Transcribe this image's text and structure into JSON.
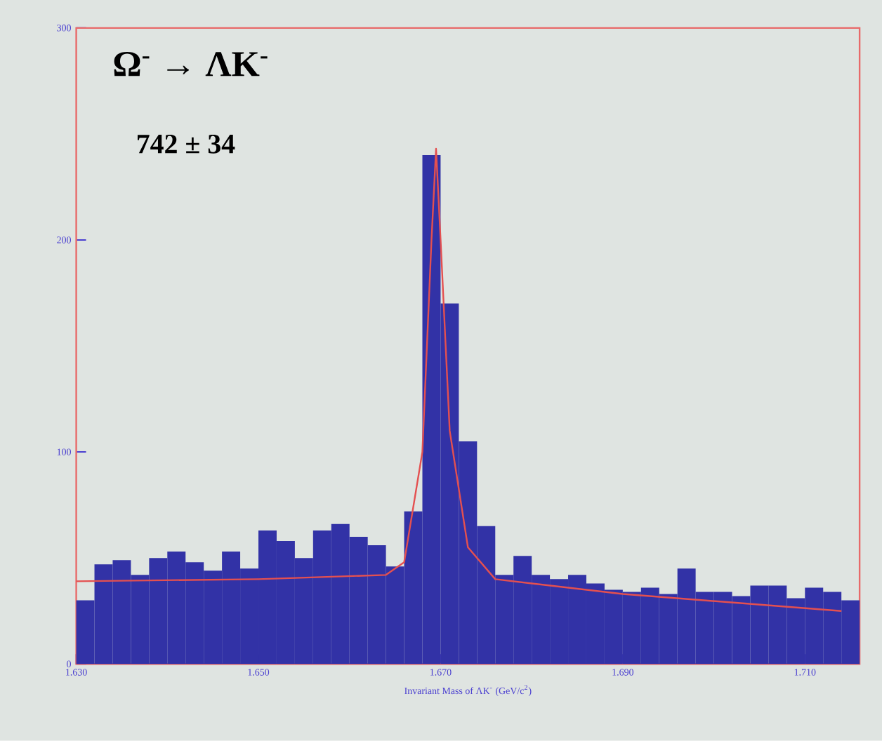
{
  "chart_data": {
    "type": "histogram",
    "title": "Ω$^{-}$ → ΛK$^{-}$",
    "xlabel": "Invariant Mass of ΛK$^{-}$ (GeV/c$^{2}$)",
    "annotations": [
      "742 ± 34"
    ],
    "bins": [
      1.63,
      1.632,
      1.634,
      1.636,
      1.638,
      1.64,
      1.642,
      1.644,
      1.646,
      1.648,
      1.65,
      1.652,
      1.654,
      1.656,
      1.658,
      1.66,
      1.662,
      1.664,
      1.666,
      1.668,
      1.67,
      1.672,
      1.674,
      1.676,
      1.678,
      1.68,
      1.682,
      1.684,
      1.686,
      1.688,
      1.69,
      1.692,
      1.694,
      1.696,
      1.698,
      1.7,
      1.702,
      1.704,
      1.706,
      1.708,
      1.71,
      1.712,
      1.714,
      1.716
    ],
    "values": [
      30,
      47,
      49,
      42,
      50,
      53,
      48,
      44,
      53,
      45,
      63,
      58,
      50,
      63,
      66,
      60,
      56,
      46,
      72,
      240,
      170,
      105,
      65,
      42,
      51,
      42,
      40,
      42,
      38,
      35,
      34,
      36,
      33,
      45,
      34,
      34,
      32,
      37,
      37,
      31,
      36,
      34,
      30
    ],
    "color": "#3232a6",
    "series": [
      {
        "type": "line",
        "color": "#e45050",
        "x": [
          1.63,
          1.65,
          1.664,
          1.666,
          1.668,
          1.669,
          1.6695,
          1.67,
          1.671,
          1.673,
          1.676,
          1.69,
          1.714
        ],
        "values": [
          39,
          40,
          42,
          48,
          100,
          200,
          243,
          200,
          110,
          55,
          40,
          33,
          25
        ]
      }
    ],
    "xlim": [
      1.63,
      1.716
    ],
    "ylim": [
      0,
      300
    ],
    "xticks": [
      {
        "value": 1.63,
        "label": "1.630"
      },
      {
        "value": 1.65,
        "label": "1.650"
      },
      {
        "value": 1.67,
        "label": "1.670"
      },
      {
        "value": 1.69,
        "label": "1.690"
      },
      {
        "value": 1.71,
        "label": "1.710"
      }
    ],
    "yticks": [
      0,
      100,
      200,
      300
    ]
  }
}
